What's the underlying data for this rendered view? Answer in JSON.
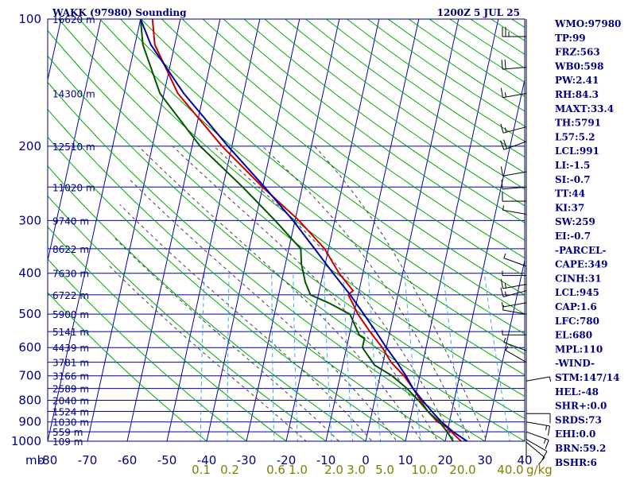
{
  "chart_data": {
    "type": "skew-t sounding",
    "title": "WAKK (97980) Sounding",
    "time": "1200Z  5 JUL 25",
    "pressure_unit_label": "mb",
    "pressure_ticks": [
      100,
      200,
      300,
      400,
      500,
      600,
      700,
      800,
      900,
      1000
    ],
    "pressure_lines": [
      100,
      200,
      250,
      300,
      350,
      400,
      450,
      500,
      550,
      600,
      650,
      700,
      750,
      800,
      850,
      900,
      950,
      1000
    ],
    "temperature_ticks": [
      -80,
      -70,
      -60,
      -50,
      -40,
      -30,
      -20,
      -10,
      0,
      10,
      20,
      30,
      40
    ],
    "temperature_tick_labels": [
      "-80",
      "-70",
      "-60",
      "-50",
      "-40",
      "-30",
      "-20",
      "-10",
      "0",
      "10",
      "20",
      "30",
      "40"
    ],
    "height_labels": [
      {
        "p": 100,
        "text": "16620 m"
      },
      {
        "p": 150,
        "text": "14300 m"
      },
      {
        "p": 200,
        "text": "12510 m"
      },
      {
        "p": 250,
        "text": "11020 m"
      },
      {
        "p": 300,
        "text": "9740 m"
      },
      {
        "p": 350,
        "text": "8622 m"
      },
      {
        "p": 400,
        "text": "7630 m"
      },
      {
        "p": 450,
        "text": "6722 m"
      },
      {
        "p": 500,
        "text": "5900 m"
      },
      {
        "p": 550,
        "text": "5141 m"
      },
      {
        "p": 600,
        "text": "4439 m"
      },
      {
        "p": 650,
        "text": "3781 m"
      },
      {
        "p": 700,
        "text": "3166 m"
      },
      {
        "p": 750,
        "text": "2589 m"
      },
      {
        "p": 800,
        "text": "2040 m"
      },
      {
        "p": 850,
        "text": "1524 m"
      },
      {
        "p": 900,
        "text": "1030 m"
      },
      {
        "p": 950,
        "text": "559 m"
      },
      {
        "p": 1000,
        "text": "109 m"
      }
    ],
    "mixing_ratio_labels": [
      "0.1",
      "0.2",
      "0.6",
      "1.0",
      "2.0",
      "3.0",
      "5.0",
      "10.0",
      "20.0",
      "40.0"
    ],
    "mixing_ratio_unit": "g/kg",
    "series": [
      {
        "role": "temperature",
        "color": "#cc0000",
        "points": [
          [
            1012,
            25
          ],
          [
            1000,
            24
          ],
          [
            950,
            21
          ],
          [
            925,
            19.5
          ],
          [
            900,
            17
          ],
          [
            850,
            14
          ],
          [
            800,
            11.5
          ],
          [
            750,
            9
          ],
          [
            700,
            6
          ],
          [
            650,
            2
          ],
          [
            600,
            -1
          ],
          [
            550,
            -5
          ],
          [
            500,
            -9
          ],
          [
            470,
            -11
          ],
          [
            450,
            -12.5
          ],
          [
            440,
            -11.5
          ],
          [
            400,
            -16
          ],
          [
            350,
            -21
          ],
          [
            300,
            -29
          ],
          [
            250,
            -40
          ],
          [
            200,
            -52.5
          ],
          [
            150,
            -66.5
          ],
          [
            115,
            -75
          ],
          [
            100,
            -77
          ]
        ]
      },
      {
        "role": "dewpoint",
        "color": "#005500",
        "points": [
          [
            1012,
            22.5
          ],
          [
            1000,
            22
          ],
          [
            950,
            20
          ],
          [
            900,
            17.5
          ],
          [
            850,
            14
          ],
          [
            800,
            11
          ],
          [
            750,
            7.5
          ],
          [
            700,
            3
          ],
          [
            660,
            -2
          ],
          [
            600,
            -6
          ],
          [
            570,
            -6
          ],
          [
            560,
            -7.5
          ],
          [
            500,
            -11
          ],
          [
            470,
            -17
          ],
          [
            450,
            -22
          ],
          [
            420,
            -24
          ],
          [
            380,
            -26
          ],
          [
            350,
            -27
          ],
          [
            300,
            -35
          ],
          [
            250,
            -45
          ],
          [
            200,
            -58
          ],
          [
            150,
            -71
          ],
          [
            115,
            -78
          ],
          [
            100,
            -80
          ]
        ]
      },
      {
        "role": "parcel",
        "color": "#0000aa",
        "points": [
          [
            1012,
            26
          ],
          [
            1000,
            25.5
          ],
          [
            950,
            21.5
          ],
          [
            900,
            18
          ],
          [
            850,
            15
          ],
          [
            800,
            12
          ],
          [
            750,
            9
          ],
          [
            700,
            6.5
          ],
          [
            650,
            3.5
          ],
          [
            600,
            0
          ],
          [
            550,
            -3.5
          ],
          [
            500,
            -7.5
          ],
          [
            450,
            -12
          ],
          [
            400,
            -17.5
          ],
          [
            350,
            -23.5
          ],
          [
            300,
            -30.5
          ],
          [
            250,
            -39.5
          ],
          [
            200,
            -51
          ],
          [
            150,
            -65
          ],
          [
            115,
            -76
          ],
          [
            100,
            -80
          ]
        ]
      }
    ],
    "wind_barbs": [
      {
        "p": 110,
        "dir": 270,
        "spd": 25
      },
      {
        "p": 130,
        "dir": 265,
        "spd": 20
      },
      {
        "p": 150,
        "dir": 260,
        "spd": 15
      },
      {
        "p": 180,
        "dir": 255,
        "spd": 15
      },
      {
        "p": 195,
        "dir": 250,
        "spd": 20
      },
      {
        "p": 230,
        "dir": 260,
        "spd": 10
      },
      {
        "p": 250,
        "dir": 265,
        "spd": 10
      },
      {
        "p": 270,
        "dir": 270,
        "spd": 10
      },
      {
        "p": 290,
        "dir": 280,
        "spd": 5
      },
      {
        "p": 385,
        "dir": 290,
        "spd": 5
      },
      {
        "p": 405,
        "dir": 270,
        "spd": 5
      },
      {
        "p": 425,
        "dir": 260,
        "spd": 15
      },
      {
        "p": 440,
        "dir": 255,
        "spd": 15
      },
      {
        "p": 470,
        "dir": 260,
        "spd": 5
      },
      {
        "p": 500,
        "dir": 280,
        "spd": 5
      },
      {
        "p": 560,
        "dir": 270,
        "spd": 5
      },
      {
        "p": 610,
        "dir": 290,
        "spd": 5
      },
      {
        "p": 650,
        "dir": 300,
        "spd": 5
      },
      {
        "p": 720,
        "dir": 80,
        "spd": 5
      },
      {
        "p": 860,
        "dir": 90,
        "spd": 10
      },
      {
        "p": 900,
        "dir": 100,
        "spd": 15
      },
      {
        "p": 950,
        "dir": 110,
        "spd": 15
      },
      {
        "p": 990,
        "dir": 120,
        "spd": 10
      },
      {
        "p": 1005,
        "dir": 130,
        "spd": 10
      }
    ]
  },
  "indices": [
    "WMO:97980",
    "TP:99",
    "FRZ:563",
    "WB0:598",
    "PW:2.41",
    "RH:84.3",
    "MAXT:33.4",
    "TH:5791",
    "L57:5.2",
    "LCL:991",
    "LI:-1.5",
    "SI:-0.7",
    "TT:44",
    "KI:37",
    "SW:259",
    "EI:-0.7",
    "-PARCEL-",
    "CAPE:349",
    "CINH:31",
    "LCL:945",
    "CAP:1.6",
    "LFC:780",
    "EL:680",
    "MPL:110",
    "-WIND-",
    "STM:147/14",
    "HEL:-48",
    "SHR+:0.0",
    "SRDS:73",
    "EHI:0.0",
    "BRN:59.2",
    "BSHR:6"
  ],
  "colors": {
    "frame": "#000080",
    "isobar": "#0000aa",
    "isotherm": "#0000aa",
    "dry_adiabat": "#00aa00",
    "moist_adiabat": "#404040",
    "mixing_ratio": "#33aaee",
    "mixing_label": "#808000"
  }
}
